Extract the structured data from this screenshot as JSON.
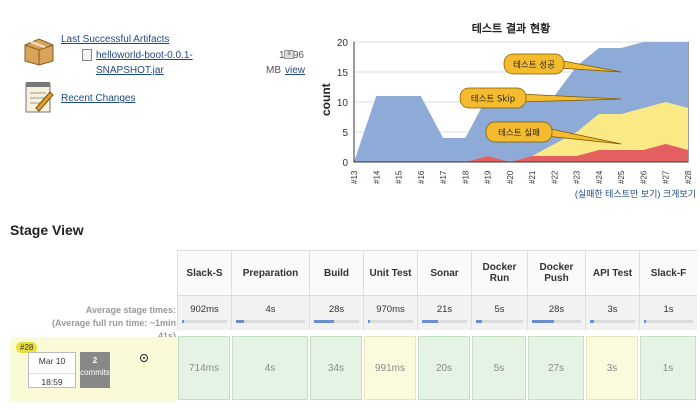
{
  "artifacts": {
    "title": "Last Successful Artifacts",
    "file_name": "helloworld-boot-0.0.1-SNAPSHOT.jar",
    "file_size": "15.96",
    "file_size_unit": "MB",
    "view_label": "view",
    "recent_changes": "Recent Changes"
  },
  "chart_links": {
    "failed_only": "(실패한 테스트만 보기)",
    "enlarge": "크게보기"
  },
  "chart_data": {
    "type": "area",
    "title": "테스트 결과 현황",
    "ylabel": "count",
    "xlabel": "",
    "ylim": [
      0,
      20
    ],
    "yticks": [
      0,
      5,
      10,
      15,
      20
    ],
    "grid": true,
    "categories": [
      "#13",
      "#14",
      "#15",
      "#16",
      "#17",
      "#18",
      "#19",
      "#20",
      "#21",
      "#22",
      "#23",
      "#24",
      "#25",
      "#26",
      "#27",
      "#28"
    ],
    "series": [
      {
        "name": "테스트 성공",
        "color": "#8eaad6",
        "values": [
          0,
          11,
          11,
          11,
          4,
          4,
          10,
          10,
          9,
          8,
          11,
          11,
          11,
          11,
          10,
          11
        ]
      },
      {
        "name": "테스트 Skip",
        "color": "#fbe985",
        "values": [
          0,
          0,
          0,
          0,
          0,
          0,
          0,
          0,
          0,
          2,
          4,
          6,
          6,
          7,
          7,
          7
        ]
      },
      {
        "name": "테스트 실패",
        "color": "#e46060",
        "values": [
          0,
          0,
          0,
          0,
          0,
          0,
          1,
          0,
          1,
          1,
          1,
          2,
          2,
          2,
          3,
          2
        ]
      }
    ],
    "annotations": [
      "테스트 성공",
      "테스트 Skip",
      "테스트 실패"
    ]
  },
  "stage_view": {
    "title": "Stage View",
    "avg_label_line1": "Average stage times:",
    "avg_label_line2": "(Average full run time: ~1min",
    "avg_label_line3": "41s)",
    "stages": [
      {
        "name": "Slack-S",
        "avg": "902ms",
        "avg_fill": 0.05,
        "cell": "714ms",
        "color": "green"
      },
      {
        "name": "Preparation",
        "avg": "4s",
        "avg_fill": 0.12,
        "cell": "4s",
        "color": "green"
      },
      {
        "name": "Build",
        "avg": "28s",
        "avg_fill": 0.45,
        "cell": "34s",
        "color": "green"
      },
      {
        "name": "Unit Test",
        "avg": "970ms",
        "avg_fill": 0.05,
        "cell": "991ms",
        "color": "yellow"
      },
      {
        "name": "Sonar",
        "avg": "21s",
        "avg_fill": 0.35,
        "cell": "20s",
        "color": "green"
      },
      {
        "name": "Docker Run",
        "avg": "5s",
        "avg_fill": 0.12,
        "cell": "5s",
        "color": "green"
      },
      {
        "name": "Docker Push",
        "avg": "28s",
        "avg_fill": 0.45,
        "cell": "27s",
        "color": "green"
      },
      {
        "name": "API Test",
        "avg": "3s",
        "avg_fill": 0.08,
        "cell": "3s",
        "color": "yellow"
      },
      {
        "name": "Slack-F",
        "avg": "1s",
        "avg_fill": 0.05,
        "cell": "1s",
        "color": "green"
      }
    ]
  },
  "build": {
    "badge": "#28",
    "date": "Mar 10",
    "time": "18:59",
    "commits_count": "2",
    "commits_label": "commits"
  }
}
